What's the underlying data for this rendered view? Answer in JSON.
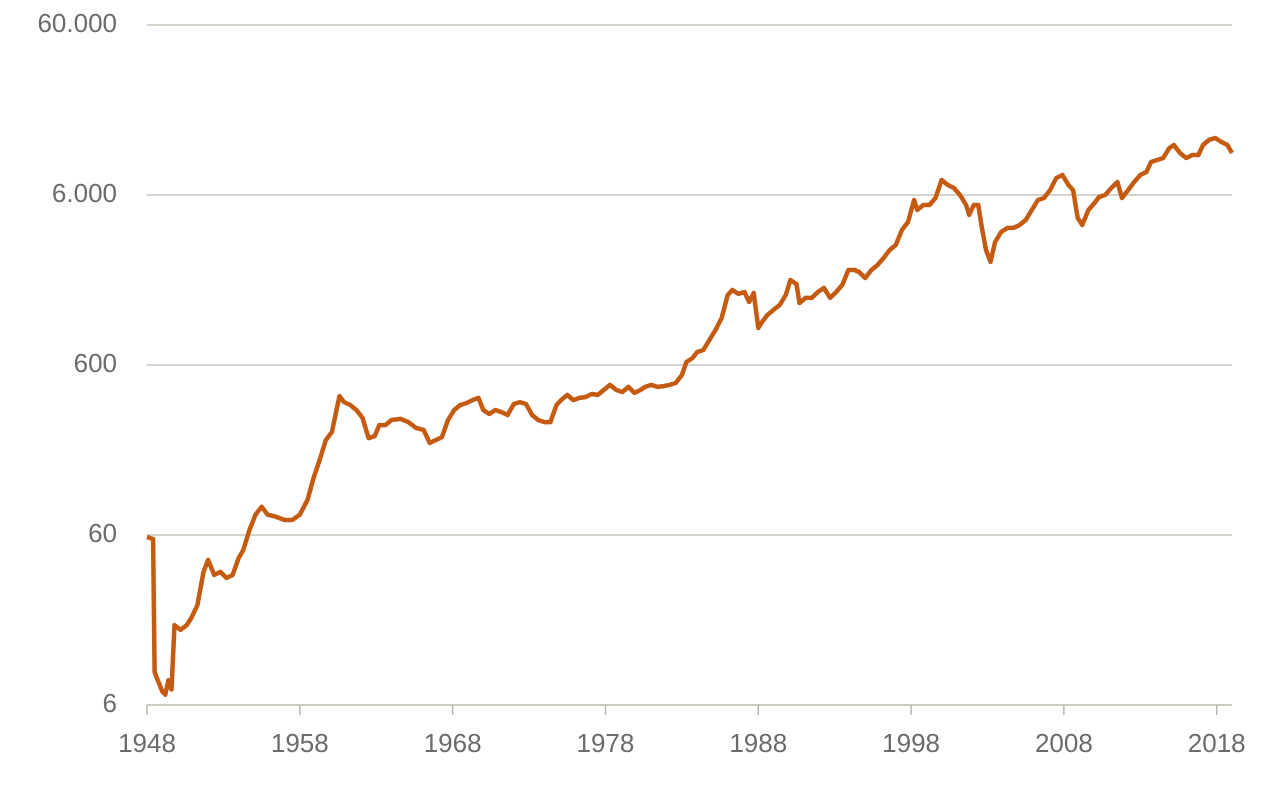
{
  "chart_data": {
    "type": "line",
    "log_scale": true,
    "grid": true,
    "x": [
      1948.0,
      1948.4,
      1948.5,
      1948.7,
      1949.0,
      1949.2,
      1949.4,
      1949.6,
      1949.8,
      1950.2,
      1950.6,
      1950.9,
      1951.3,
      1951.7,
      1952.0,
      1952.4,
      1952.8,
      1953.2,
      1953.6,
      1954.0,
      1954.3,
      1954.7,
      1955.1,
      1955.5,
      1955.9,
      1956.4,
      1957.0,
      1957.5,
      1958.0,
      1958.5,
      1958.9,
      1959.3,
      1959.7,
      1960.1,
      1960.4,
      1960.6,
      1960.9,
      1961.3,
      1961.7,
      1962.1,
      1962.5,
      1962.9,
      1963.2,
      1963.6,
      1964.0,
      1964.6,
      1965.1,
      1965.6,
      1966.1,
      1966.5,
      1966.9,
      1967.3,
      1967.7,
      1968.1,
      1968.5,
      1968.9,
      1969.3,
      1969.7,
      1970.0,
      1970.4,
      1970.8,
      1971.2,
      1971.6,
      1972.0,
      1972.4,
      1972.8,
      1973.2,
      1973.6,
      1974.0,
      1974.4,
      1974.8,
      1975.1,
      1975.5,
      1975.9,
      1976.3,
      1976.7,
      1977.1,
      1977.5,
      1977.9,
      1978.3,
      1978.7,
      1979.1,
      1979.5,
      1979.9,
      1980.3,
      1980.6,
      1981.0,
      1981.4,
      1981.8,
      1982.2,
      1982.6,
      1983.0,
      1983.3,
      1983.7,
      1984.0,
      1984.4,
      1984.8,
      1985.2,
      1985.6,
      1986.0,
      1986.3,
      1986.7,
      1987.1,
      1987.4,
      1987.7,
      1988.0,
      1988.2,
      1988.6,
      1989.0,
      1989.4,
      1989.8,
      1990.1,
      1990.5,
      1990.7,
      1991.1,
      1991.5,
      1991.9,
      1992.3,
      1992.7,
      1993.1,
      1993.5,
      1993.9,
      1994.3,
      1994.6,
      1995.0,
      1995.4,
      1995.8,
      1996.2,
      1996.6,
      1997.0,
      1997.4,
      1997.8,
      1998.2,
      1998.4,
      1998.8,
      1999.2,
      1999.6,
      2000.0,
      2000.4,
      2000.8,
      2001.2,
      2001.6,
      2001.8,
      2002.1,
      2002.4,
      2002.6,
      2002.9,
      2003.2,
      2003.5,
      2003.9,
      2004.3,
      2004.7,
      2005.1,
      2005.5,
      2005.9,
      2006.3,
      2006.7,
      2007.1,
      2007.5,
      2007.9,
      2008.3,
      2008.6,
      2008.9,
      2009.2,
      2009.6,
      2010.0,
      2010.3,
      2010.7,
      2011.1,
      2011.5,
      2011.8,
      2012.2,
      2012.6,
      2013.0,
      2013.4,
      2013.7,
      2014.1,
      2014.5,
      2014.9,
      2015.2,
      2015.6,
      2016.0,
      2016.4,
      2016.8,
      2017.1,
      2017.5,
      2017.9,
      2018.3,
      2018.7,
      2019.0
    ],
    "series": [
      {
        "color": "#c55a11",
        "values": [
          58.4,
          56.8,
          9.4,
          8.4,
          7.2,
          6.9,
          8.4,
          7.4,
          17.7,
          16.6,
          17.7,
          19.5,
          23.2,
          36.4,
          42.8,
          34.9,
          36.4,
          33.5,
          34.9,
          44,
          49,
          64,
          79,
          88,
          79,
          77,
          73.5,
          73.5,
          79,
          96.5,
          130,
          166,
          217,
          242,
          326,
          394,
          363,
          349,
          326,
          293,
          223,
          229,
          266,
          266,
          285,
          289,
          277,
          256,
          249,
          209,
          217,
          226,
          285,
          326,
          349,
          358,
          373,
          384,
          326,
          309,
          326,
          317,
          305,
          354,
          363,
          354,
          305,
          285,
          277,
          277,
          349,
          373,
          400,
          373,
          384,
          389,
          405,
          400,
          428,
          458,
          428,
          416,
          446,
          411,
          428,
          446,
          458,
          446,
          451,
          458,
          470,
          524,
          625,
          660,
          715,
          735,
          842,
          964,
          1133,
          1548,
          1656,
          1571,
          1613,
          1410,
          1593,
          990,
          1060,
          1181,
          1265,
          1352,
          1548,
          1897,
          1795,
          1390,
          1488,
          1488,
          1613,
          1704,
          1488,
          1613,
          1775,
          2173,
          2173,
          2115,
          1950,
          2173,
          2325,
          2555,
          2850,
          3048,
          3733,
          4160,
          5610,
          4897,
          5240,
          5240,
          5760,
          7350,
          6870,
          6596,
          6000,
          5240,
          4574,
          5240,
          5240,
          3997,
          2850,
          2423,
          3177,
          3633,
          3840,
          3840,
          3997,
          4277,
          4897,
          5610,
          5760,
          6416,
          7554,
          7872,
          6870,
          6416,
          4397,
          3997,
          4897,
          5385,
          5836,
          6000,
          6596,
          7152,
          5760,
          6416,
          7152,
          7872,
          8190,
          9378,
          9640,
          9907,
          11330,
          11810,
          10596,
          9907,
          10310,
          10310,
          11810,
          12650,
          12980,
          12310,
          11810,
          10596
        ]
      }
    ],
    "xlim": [
      1948,
      2019
    ],
    "xticks": [
      1948,
      1958,
      1968,
      1978,
      1988,
      1998,
      2008,
      2018
    ],
    "ylim": [
      6,
      60000
    ],
    "yticks": [
      6,
      60,
      600,
      {
        "value": 6000,
        "label": "6.000"
      },
      {
        "value": 60000,
        "label": "60.000"
      }
    ]
  }
}
